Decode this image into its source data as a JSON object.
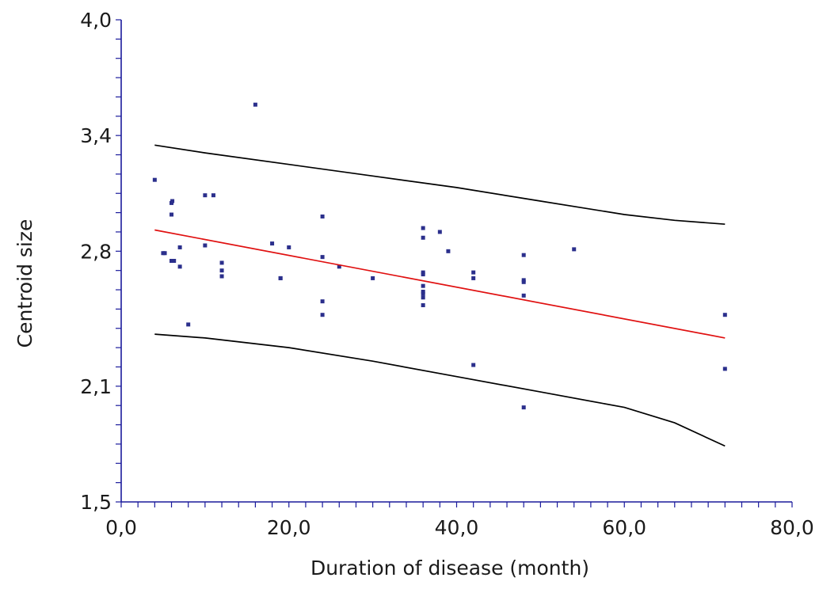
{
  "chart_data": {
    "type": "scatter",
    "xlabel": "Duration of disease (month)",
    "ylabel": "Centroid size",
    "xlim": [
      0,
      80
    ],
    "ylim": [
      1.5,
      4.0
    ],
    "x_ticks": [
      "0,0",
      "20,0",
      "40,0",
      "60,0",
      "80,0"
    ],
    "y_ticks": [
      "1,5",
      "2,1",
      "2,8",
      "3,4",
      "4,0"
    ],
    "y_tick_values": [
      1.5,
      2.1,
      2.8,
      3.4,
      4.0
    ],
    "grid": false,
    "colors": {
      "points": "#2b2f8c",
      "fit": "#e01010",
      "bands": "#000000",
      "axes": "#1a1a9c"
    },
    "series": [
      {
        "kind": "points",
        "points": [
          [
            4,
            3.17
          ],
          [
            5,
            2.79
          ],
          [
            5.2,
            2.79
          ],
          [
            6,
            3.05
          ],
          [
            6.1,
            3.06
          ],
          [
            6,
            2.99
          ],
          [
            6,
            2.75
          ],
          [
            6.3,
            2.75
          ],
          [
            7,
            2.72
          ],
          [
            7,
            2.82
          ],
          [
            8,
            2.42
          ],
          [
            10,
            3.09
          ],
          [
            10,
            2.83
          ],
          [
            11,
            3.09
          ],
          [
            12,
            2.74
          ],
          [
            12,
            2.7
          ],
          [
            12,
            2.67
          ],
          [
            16,
            3.56
          ],
          [
            18,
            2.84
          ],
          [
            19,
            2.66
          ],
          [
            19,
            2.66
          ],
          [
            20,
            2.82
          ],
          [
            24,
            2.98
          ],
          [
            24,
            2.77
          ],
          [
            24,
            2.54
          ],
          [
            24,
            2.47
          ],
          [
            26,
            2.72
          ],
          [
            30,
            2.66
          ],
          [
            36,
            2.92
          ],
          [
            36,
            2.87
          ],
          [
            36,
            2.69
          ],
          [
            36,
            2.68
          ],
          [
            36,
            2.62
          ],
          [
            36,
            2.59
          ],
          [
            36,
            2.58
          ],
          [
            36,
            2.56
          ],
          [
            36,
            2.52
          ],
          [
            38,
            2.9
          ],
          [
            39,
            2.8
          ],
          [
            42,
            2.69
          ],
          [
            42,
            2.66
          ],
          [
            42,
            2.21
          ],
          [
            48,
            2.78
          ],
          [
            48,
            2.65
          ],
          [
            48,
            2.64
          ],
          [
            48,
            2.57
          ],
          [
            48,
            1.99
          ],
          [
            54,
            2.81
          ],
          [
            72,
            2.47
          ],
          [
            72,
            2.19
          ]
        ]
      },
      {
        "kind": "fit",
        "points": [
          [
            4,
            2.91
          ],
          [
            72,
            2.35
          ]
        ]
      },
      {
        "kind": "upper-band",
        "points": [
          [
            4,
            3.35
          ],
          [
            10,
            3.31
          ],
          [
            20,
            3.25
          ],
          [
            30,
            3.19
          ],
          [
            40,
            3.13
          ],
          [
            50,
            3.06
          ],
          [
            60,
            2.99
          ],
          [
            66,
            2.96
          ],
          [
            72,
            2.94
          ]
        ]
      },
      {
        "kind": "lower-band",
        "points": [
          [
            4,
            2.37
          ],
          [
            10,
            2.35
          ],
          [
            20,
            2.3
          ],
          [
            30,
            2.23
          ],
          [
            40,
            2.15
          ],
          [
            50,
            2.07
          ],
          [
            60,
            1.99
          ],
          [
            66,
            1.91
          ],
          [
            72,
            1.79
          ]
        ]
      }
    ]
  }
}
